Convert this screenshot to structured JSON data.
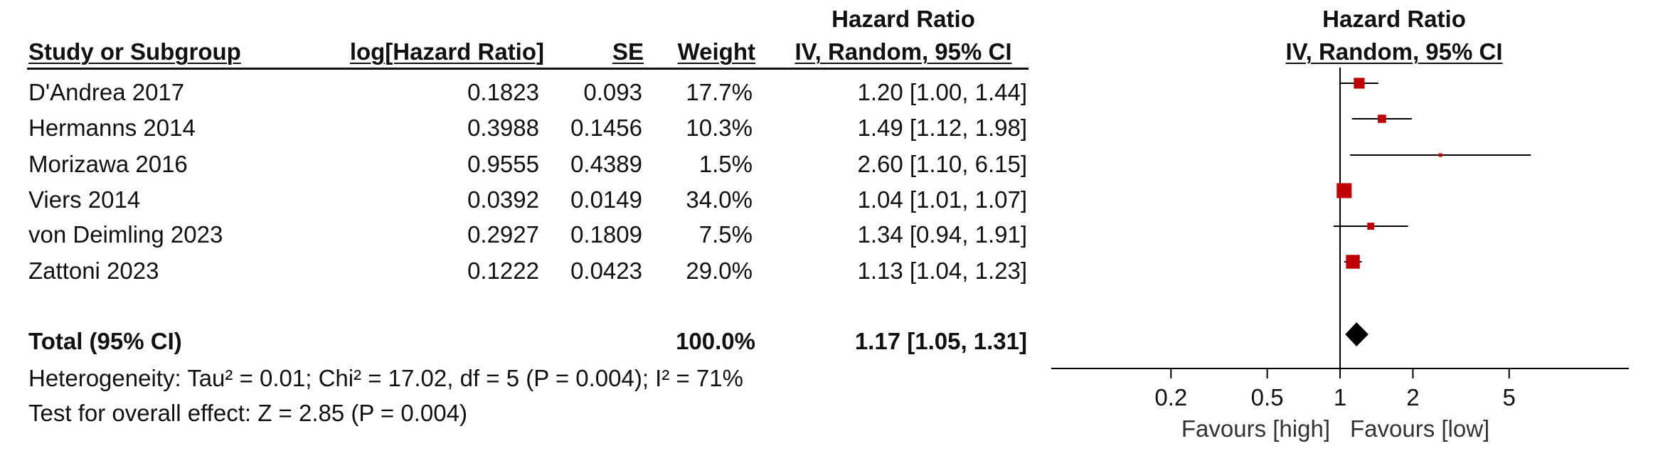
{
  "header": {
    "study": "Study or Subgroup",
    "loghr": "log[Hazard Ratio]",
    "se": "SE",
    "weight": "Weight",
    "hr_title": "Hazard Ratio",
    "hr_method": "IV, Random, 95% CI",
    "plot_title": "Hazard Ratio",
    "plot_method": "IV, Random, 95% CI"
  },
  "studies": [
    {
      "name": "D'Andrea 2017",
      "loghr": "0.1823",
      "se": "0.093",
      "weight": "17.7%",
      "ci": "1.20 [1.00, 1.44]"
    },
    {
      "name": "Hermanns 2014",
      "loghr": "0.3988",
      "se": "0.1456",
      "weight": "10.3%",
      "ci": "1.49 [1.12, 1.98]"
    },
    {
      "name": "Morizawa 2016",
      "loghr": "0.9555",
      "se": "0.4389",
      "weight": "1.5%",
      "ci": "2.60 [1.10, 6.15]"
    },
    {
      "name": "Viers 2014",
      "loghr": "0.0392",
      "se": "0.0149",
      "weight": "34.0%",
      "ci": "1.04 [1.01, 1.07]"
    },
    {
      "name": "von Deimling 2023",
      "loghr": "0.2927",
      "se": "0.1809",
      "weight": "7.5%",
      "ci": "1.34 [0.94, 1.91]"
    },
    {
      "name": "Zattoni 2023",
      "loghr": "0.1222",
      "se": "0.0423",
      "weight": "29.0%",
      "ci": "1.13 [1.04, 1.23]"
    }
  ],
  "total": {
    "label": "Total (95% CI)",
    "weight": "100.0%",
    "ci": "1.17 [1.05, 1.31]"
  },
  "heterogeneity": "Heterogeneity: Tau² = 0.01; Chi² = 17.02, df = 5 (P = 0.004); I² = 71%",
  "overall_effect": "Test for overall effect: Z = 2.85 (P = 0.004)",
  "chart_data": {
    "type": "forest",
    "title": "Hazard Ratio",
    "subtitle": "IV, Random, 95% CI",
    "xscale": "log",
    "xlim": [
      0.15,
      7.5
    ],
    "xticks": [
      0.2,
      0.5,
      1,
      2,
      5
    ],
    "xtick_labels": [
      "0.2",
      "0.5",
      "1",
      "2",
      "5"
    ],
    "reference_line": 1,
    "xlabel_left": "Favours [high]",
    "xlabel_right": "Favours [low]",
    "series": [
      {
        "name": "D'Andrea 2017",
        "hr": 1.2,
        "lower": 1.0,
        "upper": 1.44,
        "weight": 17.7
      },
      {
        "name": "Hermanns 2014",
        "hr": 1.49,
        "lower": 1.12,
        "upper": 1.98,
        "weight": 10.3
      },
      {
        "name": "Morizawa 2016",
        "hr": 2.6,
        "lower": 1.1,
        "upper": 6.15,
        "weight": 1.5
      },
      {
        "name": "Viers 2014",
        "hr": 1.04,
        "lower": 1.01,
        "upper": 1.07,
        "weight": 34.0
      },
      {
        "name": "von Deimling 2023",
        "hr": 1.34,
        "lower": 0.94,
        "upper": 1.91,
        "weight": 7.5
      },
      {
        "name": "Zattoni 2023",
        "hr": 1.13,
        "lower": 1.04,
        "upper": 1.23,
        "weight": 29.0
      }
    ],
    "pooled": {
      "name": "Total (95% CI)",
      "hr": 1.17,
      "lower": 1.05,
      "upper": 1.31
    },
    "colors": {
      "marker": "#c00000",
      "line": "#000000",
      "diamond": "#000000"
    }
  }
}
